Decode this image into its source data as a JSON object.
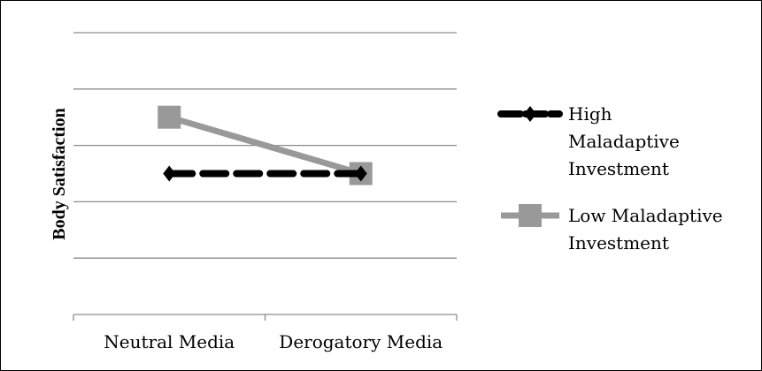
{
  "chart_data": {
    "type": "line",
    "title": "",
    "xlabel": "",
    "ylabel": "Body Satisfaction",
    "categories": [
      "Neutral Media",
      "Derogatory Media"
    ],
    "ylim": [
      0,
      5
    ],
    "y_tick_labels_shown": false,
    "grid": true,
    "legend_position": "right",
    "series": [
      {
        "name": "High Maladaptive Investment",
        "name_lines": [
          "High",
          "Maladaptive",
          "Investment"
        ],
        "values": [
          2.5,
          2.5
        ],
        "color": "#000000",
        "line_style": "dashed",
        "marker": "diamond"
      },
      {
        "name": "Low Maladaptive Investment",
        "name_lines": [
          "Low Maladaptive",
          "Investment"
        ],
        "values": [
          3.5,
          2.5
        ],
        "color": "#999999",
        "line_style": "solid",
        "marker": "square"
      }
    ]
  }
}
